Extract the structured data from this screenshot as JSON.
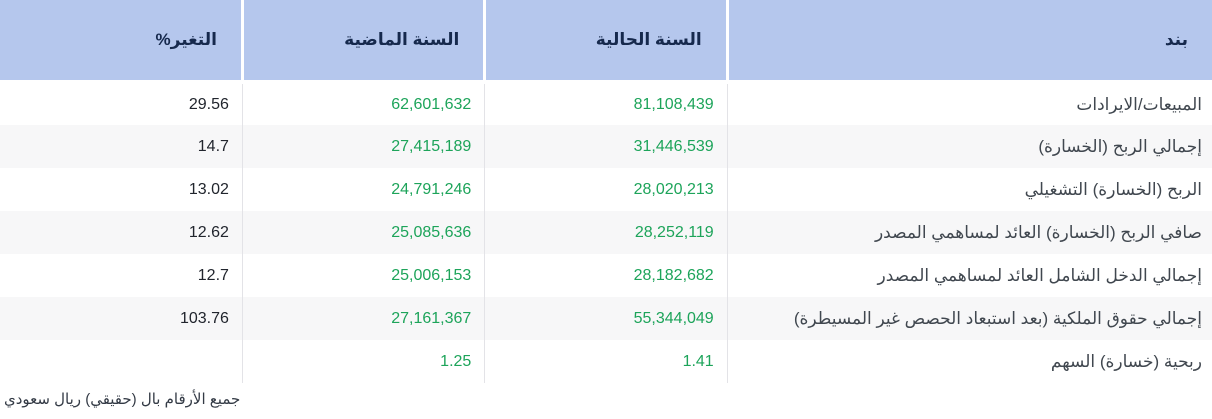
{
  "table": {
    "columns": [
      {
        "key": "item",
        "label": "بند"
      },
      {
        "key": "current",
        "label": "السنة الحالية"
      },
      {
        "key": "previous",
        "label": "السنة الماضية"
      },
      {
        "key": "change",
        "label": "التغير%"
      }
    ],
    "rows": [
      {
        "item": "المبيعات/الايرادات",
        "current": "81,108,439",
        "previous": "62,601,632",
        "change": "29.56"
      },
      {
        "item": "إجمالي الربح (الخسارة)",
        "current": "31,446,539",
        "previous": "27,415,189",
        "change": "14.7"
      },
      {
        "item": "الربح (الخسارة) التشغيلي",
        "current": "28,020,213",
        "previous": "24,791,246",
        "change": "13.02"
      },
      {
        "item": "صافي الربح (الخسارة) العائد لمساهمي المصدر",
        "current": "28,252,119",
        "previous": "25,085,636",
        "change": "12.62"
      },
      {
        "item": "إجمالي الدخل الشامل العائد لمساهمي المصدر",
        "current": "28,182,682",
        "previous": "25,006,153",
        "change": "12.7"
      },
      {
        "item": "إجمالي حقوق الملكية (بعد استبعاد الحصص غير المسيطرة)",
        "current": "55,344,049",
        "previous": "27,161,367",
        "change": "103.76"
      },
      {
        "item": "ربحية (خسارة) السهم",
        "current": "1.41",
        "previous": "1.25",
        "change": ""
      }
    ]
  },
  "footer": {
    "note": "جميع الأرقام بال (حقيقي) ريال سعودي"
  },
  "colors": {
    "header_bg": "#b5c7ed",
    "header_text": "#16294d",
    "value_green": "#1da45a",
    "change_text": "#21252d",
    "row_alt_bg": "#f7f7f8",
    "separator": "#e3e3e7"
  }
}
